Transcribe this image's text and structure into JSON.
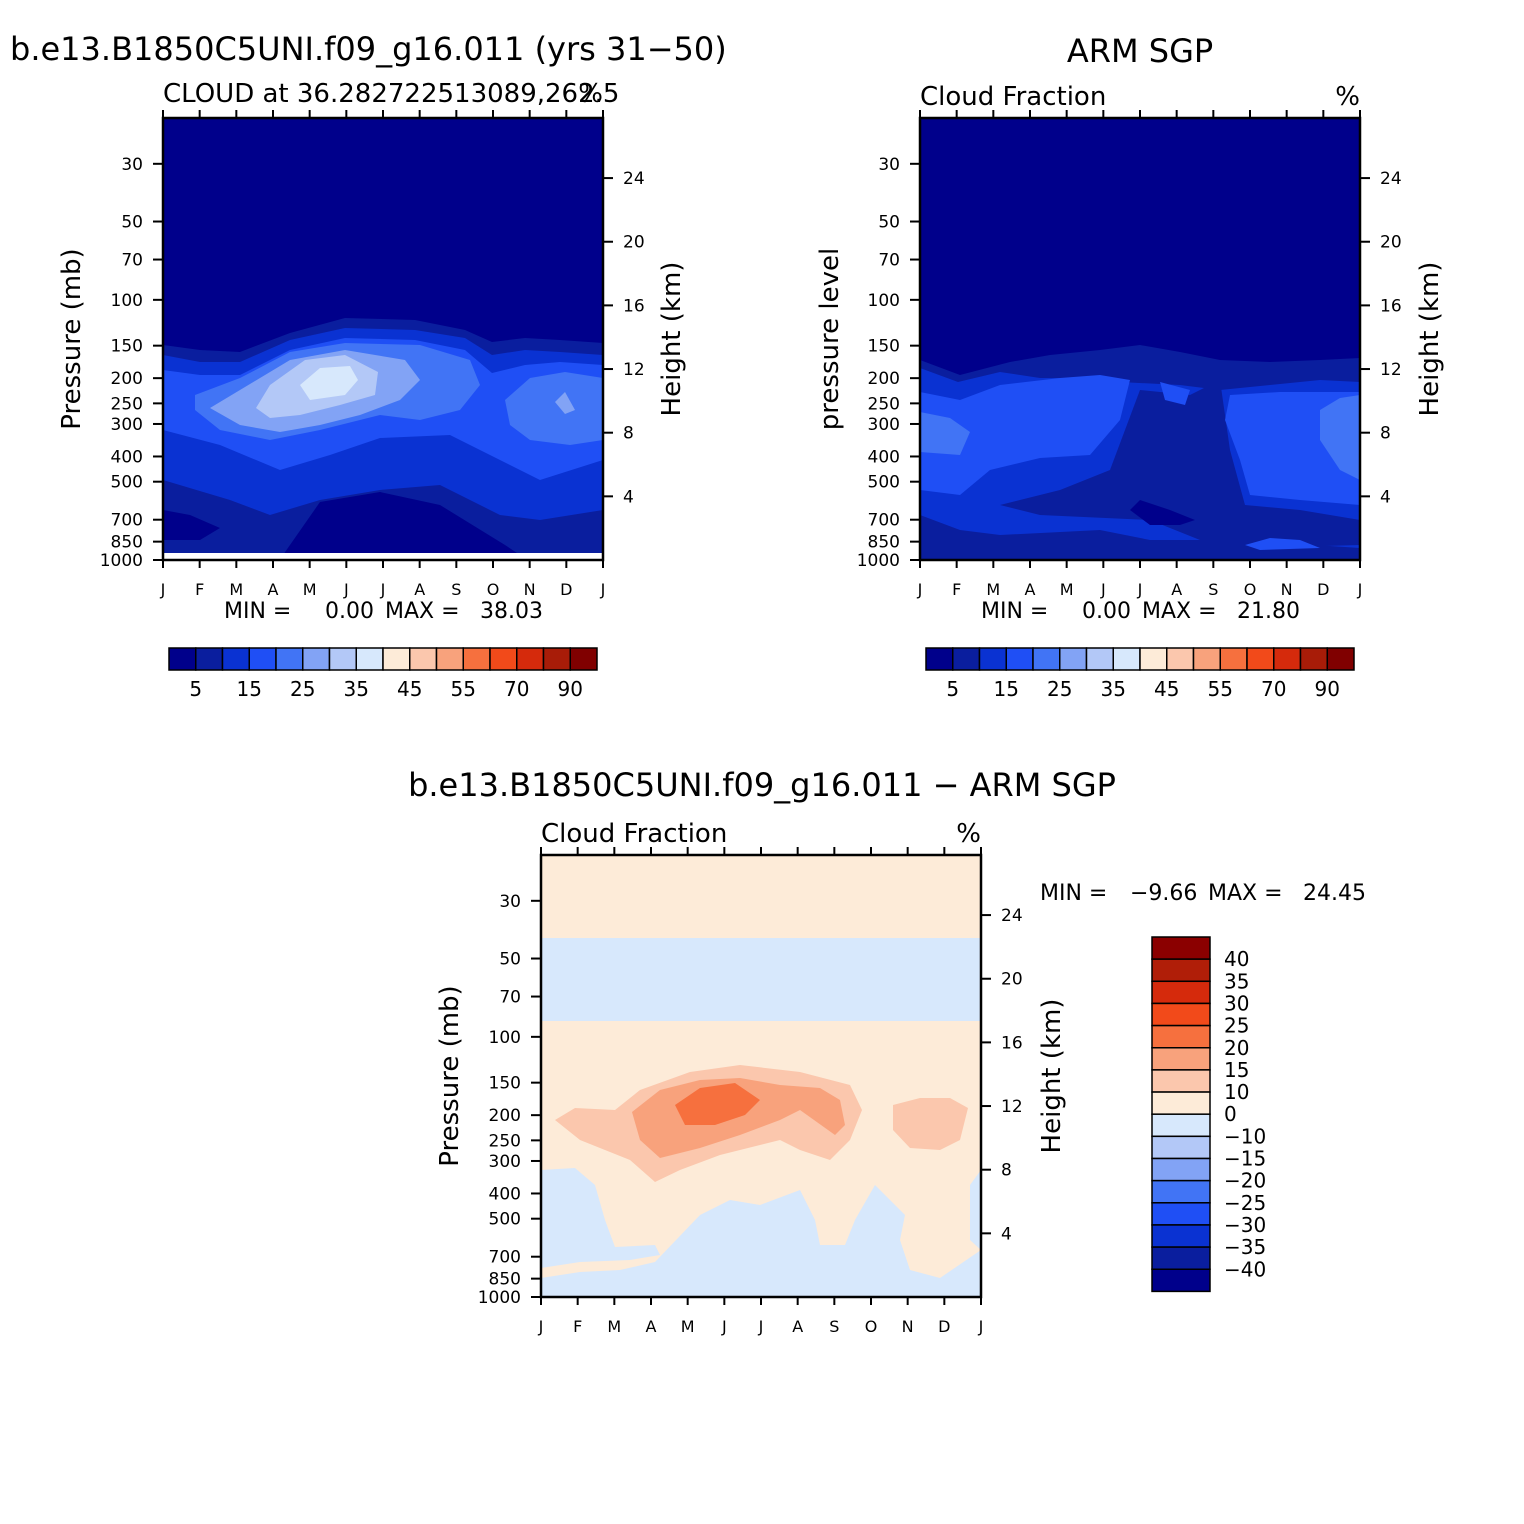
{
  "colors": {
    "levels15": [
      "#00008b",
      "#0a1e9e",
      "#0a32d2",
      "#1f4ff5",
      "#4174f5",
      "#82a3f5",
      "#b3c8f7",
      "#d7e8fc",
      "#fdebd8",
      "#fbc7ad",
      "#f8a27c",
      "#f6703e",
      "#f24a1a",
      "#d52a0c",
      "#a81c08",
      "#800000"
    ],
    "diff16": [
      "#00008b",
      "#0a1e9e",
      "#0a32d2",
      "#1f4ff5",
      "#4174f5",
      "#82a3f5",
      "#b3c8f7",
      "#d7e8fc",
      "#fdebd8",
      "#fbc7ad",
      "#f8a27c",
      "#f6703e",
      "#f24a1a",
      "#d52a0c",
      "#b01e08",
      "#8b0000"
    ]
  },
  "figure": {
    "panel1_title": "b.e13.B1850C5UNI.f09_g16.011 (yrs 31−50)",
    "panel2_title": "ARM SGP",
    "panel3_title": "b.e13.B1850C5UNI.f09_g16.011 − ARM SGP"
  },
  "chart_data": [
    {
      "type": "heatmap",
      "title": "b.e13.B1850C5UNI.f09_g16.011 (yrs 31−50)",
      "left_string": "CLOUD at 36.282722513089,262.5",
      "right_string": "%",
      "xlabel": "",
      "ylabel": "Pressure (mb)",
      "y2label": "Height (km)",
      "x_ticks": [
        "J",
        "F",
        "M",
        "A",
        "M",
        "J",
        "J",
        "A",
        "S",
        "O",
        "N",
        "D",
        "J"
      ],
      "y_ticks": [
        "30",
        "50",
        "70",
        "100",
        "150",
        "200",
        "250",
        "300",
        "400",
        "500",
        "700",
        "850",
        "1000"
      ],
      "y_log_scale": true,
      "ylim": [
        1000,
        20
      ],
      "y2_ticks": [
        "24",
        "20",
        "16",
        "12",
        "8",
        "4"
      ],
      "stats": {
        "min_label": "MIN =",
        "min": "0.00",
        "max_label": "MAX =",
        "max": "38.03"
      },
      "colorbar": {
        "orientation": "horizontal",
        "levels": [
          5,
          10,
          15,
          20,
          25,
          30,
          35,
          40,
          45,
          50,
          55,
          60,
          70,
          80,
          90
        ],
        "labels": [
          "5",
          "15",
          "25",
          "35",
          "45",
          "55",
          "70",
          "90"
        ]
      },
      "approx_fields": [
        {
          "level": "< 5",
          "pressure_range_mb": [
            20,
            180
          ],
          "months": "Jan-Dec"
        },
        {
          "level": "< 5",
          "pressure_range_mb": [
            580,
            960
          ],
          "months": "Jun-Aug"
        },
        {
          "level": "30-35",
          "pressure_range_mb": [
            200,
            300
          ],
          "months": "Apr-Jun"
        },
        {
          "level": "35-40",
          "pressure_range_mb": [
            220,
            270
          ],
          "months": "May-Jun"
        },
        {
          "level": "20-25",
          "pressure_range_mb": [
            250,
            300
          ],
          "months": "Nov-Dec"
        }
      ]
    },
    {
      "type": "heatmap",
      "title": "ARM SGP",
      "left_string": "Cloud Fraction",
      "right_string": "%",
      "xlabel": "",
      "ylabel": "pressure level",
      "y2label": "Height (km)",
      "x_ticks": [
        "J",
        "F",
        "M",
        "A",
        "M",
        "J",
        "J",
        "A",
        "S",
        "O",
        "N",
        "D",
        "J"
      ],
      "y_ticks": [
        "30",
        "50",
        "70",
        "100",
        "150",
        "200",
        "250",
        "300",
        "400",
        "500",
        "700",
        "850",
        "1000"
      ],
      "y_log_scale": true,
      "ylim": [
        1000,
        20
      ],
      "y2_ticks": [
        "24",
        "20",
        "16",
        "12",
        "8",
        "4"
      ],
      "stats": {
        "min_label": "MIN =",
        "min": "0.00",
        "max_label": "MAX =",
        "max": "21.80"
      },
      "colorbar": {
        "orientation": "horizontal",
        "levels": [
          5,
          10,
          15,
          20,
          25,
          30,
          35,
          40,
          45,
          50,
          55,
          60,
          70,
          80,
          90
        ],
        "labels": [
          "5",
          "15",
          "25",
          "35",
          "45",
          "55",
          "70",
          "90"
        ]
      },
      "approx_fields": [
        {
          "level": "< 5",
          "pressure_range_mb": [
            20,
            190
          ],
          "months": "Jan-Dec"
        },
        {
          "level": "10-15",
          "pressure_range_mb": [
            230,
            450
          ],
          "months": "Jan-Apr"
        },
        {
          "level": "20-25",
          "pressure_range_mb": [
            300,
            420
          ],
          "months": "Jan"
        },
        {
          "level": "< 5",
          "pressure_range_mb": [
            650,
            720
          ],
          "months": "Jul"
        }
      ]
    },
    {
      "type": "heatmap",
      "title": "b.e13.B1850C5UNI.f09_g16.011 − ARM SGP",
      "left_string": "Cloud Fraction",
      "right_string": "%",
      "xlabel": "",
      "ylabel": "Pressure (mb)",
      "y2label": "Height (km)",
      "x_ticks": [
        "J",
        "F",
        "M",
        "A",
        "M",
        "J",
        "J",
        "A",
        "S",
        "O",
        "N",
        "D",
        "J"
      ],
      "y_ticks": [
        "30",
        "50",
        "70",
        "100",
        "150",
        "200",
        "250",
        "300",
        "400",
        "500",
        "700",
        "850",
        "1000"
      ],
      "y_log_scale": true,
      "ylim": [
        1000,
        20
      ],
      "y2_ticks": [
        "24",
        "20",
        "16",
        "12",
        "8",
        "4"
      ],
      "stats": {
        "min_label": "MIN =",
        "min": "−9.66",
        "max_label": "MAX =",
        "max": "24.45"
      },
      "colorbar": {
        "orientation": "vertical",
        "levels": [
          -40,
          -35,
          -30,
          -25,
          -20,
          -15,
          -10,
          0,
          10,
          15,
          20,
          25,
          30,
          35,
          40
        ],
        "labels": [
          "40",
          "35",
          "30",
          "25",
          "20",
          "15",
          "10",
          "0",
          "−10",
          "−15",
          "−20",
          "−25",
          "−30",
          "−35",
          "−40"
        ]
      },
      "approx_fields": [
        {
          "level": "0 to -10",
          "pressure_range_mb": [
            50,
            100
          ],
          "months": "Jan-Dec"
        },
        {
          "level": "0 to 10",
          "pressure_range_mb": [
            20,
            50
          ],
          "months": "Jan-Dec"
        },
        {
          "level": "0 to 10",
          "pressure_range_mb": [
            100,
            1000
          ],
          "months": "Jan-Dec"
        },
        {
          "level": "10-15",
          "pressure_range_mb": [
            190,
            340
          ],
          "months": "Jan-Sep"
        },
        {
          "level": "15-20",
          "pressure_range_mb": [
            160,
            280
          ],
          "months": "Mar-Sep"
        },
        {
          "level": "20-25",
          "pressure_range_mb": [
            175,
            240
          ],
          "months": "Apr-Jun"
        },
        {
          "level": "0 to -10",
          "pressure_range_mb": [
            420,
            1000
          ],
          "months": "Apr-Dec"
        }
      ]
    }
  ]
}
